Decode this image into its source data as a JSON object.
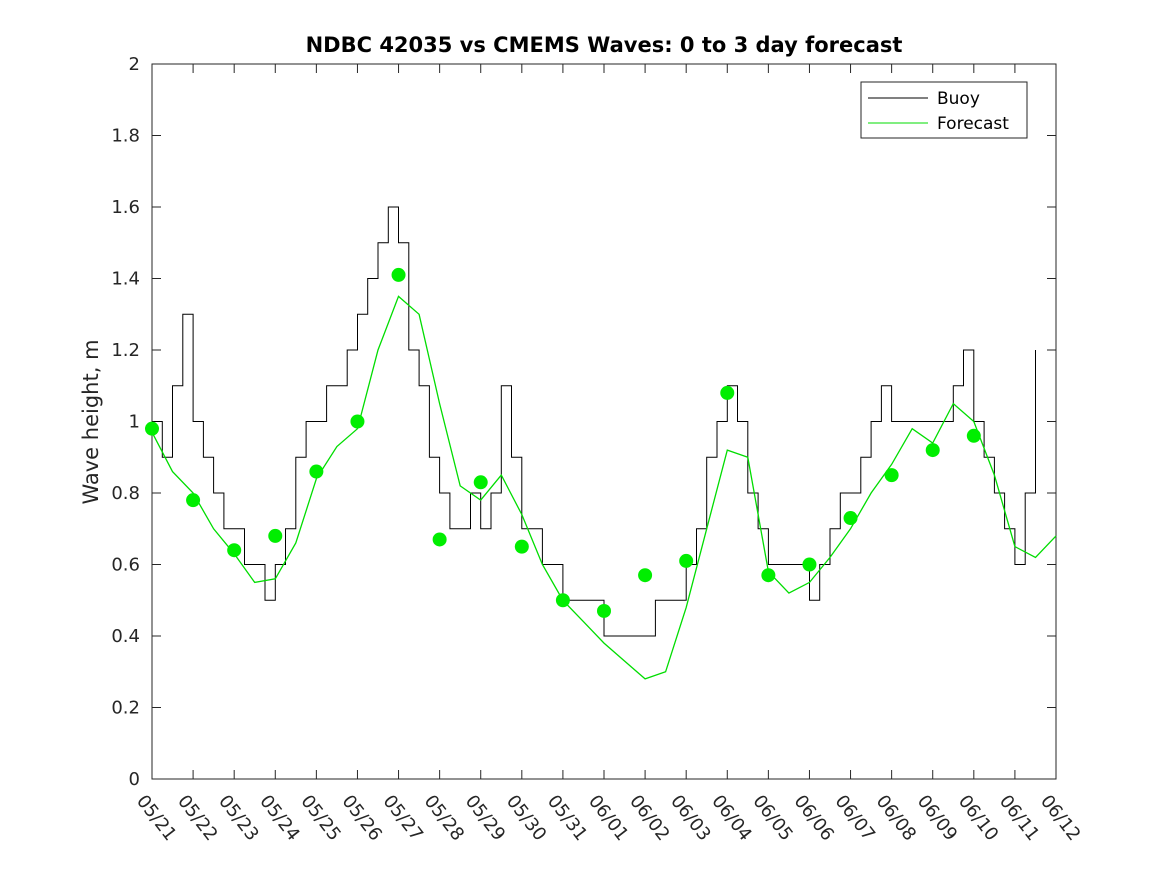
{
  "chart_data": {
    "type": "line",
    "title": "NDBC 42035 vs CMEMS Waves: 0 to 3 day forecast",
    "xlabel": "",
    "ylabel": "Wave height, m",
    "xlim": [
      "05/21",
      "06/12"
    ],
    "ylim": [
      0,
      2
    ],
    "yticks": [
      0,
      0.2,
      0.4,
      0.6,
      0.8,
      1,
      1.2,
      1.4,
      1.6,
      1.8,
      2
    ],
    "ytick_labels": [
      "0",
      "0.2",
      "0.4",
      "0.6",
      "0.8",
      "1",
      "1.2",
      "1.4",
      "1.6",
      "1.8",
      "2"
    ],
    "xtick_labels": [
      "05/21",
      "05/22",
      "05/23",
      "05/24",
      "05/25",
      "05/26",
      "05/27",
      "05/28",
      "05/29",
      "05/30",
      "05/31",
      "06/01",
      "06/02",
      "06/03",
      "06/04",
      "06/05",
      "06/06",
      "06/07",
      "06/08",
      "06/09",
      "06/10",
      "06/11",
      "06/12"
    ],
    "grid": false,
    "legend": {
      "placement": "top-right",
      "entries": [
        {
          "name": "Buoy",
          "color": "#000000"
        },
        {
          "name": "Forecast",
          "color": "#00dd00"
        }
      ]
    },
    "colors": {
      "buoy": "#000000",
      "forecast": "#00dd00",
      "markers": "#00ee00"
    },
    "series": [
      {
        "name": "Buoy",
        "x": [
          "05/21 00:00",
          "05/21 06:00",
          "05/21 12:00",
          "05/21 18:00",
          "05/22 00:00",
          "05/22 06:00",
          "05/22 12:00",
          "05/22 18:00",
          "05/23 00:00",
          "05/23 06:00",
          "05/23 12:00",
          "05/23 18:00",
          "05/24 00:00",
          "05/24 06:00",
          "05/24 12:00",
          "05/24 18:00",
          "05/25 00:00",
          "05/25 06:00",
          "05/25 12:00",
          "05/25 18:00",
          "05/26 00:00",
          "05/26 06:00",
          "05/26 12:00",
          "05/26 18:00",
          "05/27 00:00",
          "05/27 06:00",
          "05/27 12:00",
          "05/27 18:00",
          "05/28 00:00",
          "05/28 06:00",
          "05/28 12:00",
          "05/28 18:00",
          "05/29 00:00",
          "05/29 06:00",
          "05/29 12:00",
          "05/29 18:00",
          "05/30 00:00",
          "05/30 06:00",
          "05/30 12:00",
          "05/30 18:00",
          "05/31 00:00",
          "05/31 06:00",
          "05/31 12:00",
          "05/31 18:00",
          "06/01 00:00",
          "06/01 06:00",
          "06/01 12:00",
          "06/01 18:00",
          "06/02 00:00",
          "06/02 06:00",
          "06/02 12:00",
          "06/02 18:00",
          "06/03 00:00",
          "06/03 06:00",
          "06/03 12:00",
          "06/03 18:00",
          "06/04 00:00",
          "06/04 06:00",
          "06/04 12:00",
          "06/04 18:00",
          "06/05 00:00",
          "06/05 06:00",
          "06/05 12:00",
          "06/05 18:00",
          "06/06 00:00",
          "06/06 06:00",
          "06/06 12:00",
          "06/06 18:00",
          "06/07 00:00",
          "06/07 06:00",
          "06/07 12:00",
          "06/07 18:00",
          "06/08 00:00",
          "06/08 06:00",
          "06/08 12:00",
          "06/08 18:00",
          "06/09 00:00",
          "06/09 06:00",
          "06/09 12:00",
          "06/09 18:00",
          "06/10 00:00",
          "06/10 06:00",
          "06/10 12:00",
          "06/10 18:00",
          "06/11 00:00",
          "06/11 06:00",
          "06/11 12:00"
        ],
        "y": [
          1.0,
          0.9,
          1.1,
          1.3,
          1.0,
          0.9,
          0.8,
          0.7,
          0.7,
          0.6,
          0.6,
          0.5,
          0.6,
          0.7,
          0.9,
          1.0,
          1.0,
          1.1,
          1.1,
          1.2,
          1.3,
          1.4,
          1.5,
          1.6,
          1.5,
          1.2,
          1.1,
          0.9,
          0.8,
          0.7,
          0.7,
          0.8,
          0.7,
          0.8,
          1.1,
          0.9,
          0.7,
          0.7,
          0.6,
          0.6,
          0.5,
          0.5,
          0.5,
          0.5,
          0.4,
          0.4,
          0.4,
          0.4,
          0.4,
          0.5,
          0.5,
          0.5,
          0.6,
          0.7,
          0.9,
          1.0,
          1.1,
          1.0,
          0.8,
          0.7,
          0.6,
          0.6,
          0.6,
          0.6,
          0.5,
          0.6,
          0.7,
          0.8,
          0.8,
          0.9,
          1.0,
          1.1,
          1.0,
          1.0,
          1.0,
          1.0,
          1.0,
          1.0,
          1.1,
          1.2,
          1.0,
          0.9,
          0.8,
          0.7,
          0.6,
          0.8,
          1.2
        ]
      },
      {
        "name": "Forecast",
        "x": [
          "05/21 00:00",
          "05/21 12:00",
          "05/22 00:00",
          "05/22 12:00",
          "05/23 00:00",
          "05/23 12:00",
          "05/24 00:00",
          "05/24 12:00",
          "05/25 00:00",
          "05/25 12:00",
          "05/26 00:00",
          "05/26 12:00",
          "05/27 00:00",
          "05/27 12:00",
          "05/28 00:00",
          "05/28 12:00",
          "05/29 00:00",
          "05/29 12:00",
          "05/30 00:00",
          "05/30 12:00",
          "05/31 00:00",
          "05/31 12:00",
          "06/01 00:00",
          "06/01 12:00",
          "06/02 00:00",
          "06/02 12:00",
          "06/03 00:00",
          "06/03 12:00",
          "06/04 00:00",
          "06/04 12:00",
          "06/05 00:00",
          "06/05 12:00",
          "06/06 00:00",
          "06/06 12:00",
          "06/07 00:00",
          "06/07 12:00",
          "06/08 00:00",
          "06/08 12:00",
          "06/09 00:00",
          "06/09 12:00",
          "06/10 00:00",
          "06/10 12:00",
          "06/11 00:00",
          "06/11 12:00",
          "06/12 00:00"
        ],
        "y": [
          0.97,
          0.86,
          0.8,
          0.7,
          0.63,
          0.55,
          0.56,
          0.66,
          0.84,
          0.93,
          0.98,
          1.2,
          1.35,
          1.3,
          1.05,
          0.82,
          0.78,
          0.85,
          0.74,
          0.6,
          0.5,
          0.44,
          0.38,
          0.33,
          0.28,
          0.3,
          0.48,
          0.7,
          0.92,
          0.9,
          0.58,
          0.52,
          0.55,
          0.62,
          0.7,
          0.8,
          0.88,
          0.98,
          0.94,
          1.05,
          1.0,
          0.85,
          0.65,
          0.62,
          0.68
        ]
      }
    ],
    "markers": {
      "name": "Forecast",
      "x": [
        "05/21",
        "05/22",
        "05/23",
        "05/24",
        "05/25",
        "05/26",
        "05/27",
        "05/28",
        "05/29",
        "05/30",
        "05/31",
        "06/01",
        "06/02",
        "06/03",
        "06/04",
        "06/05",
        "06/06",
        "06/07",
        "06/08",
        "06/09",
        "06/10"
      ],
      "y": [
        0.98,
        0.78,
        0.64,
        0.68,
        0.86,
        1.0,
        1.41,
        0.67,
        0.83,
        0.65,
        0.5,
        0.47,
        0.57,
        0.61,
        1.08,
        0.57,
        0.6,
        0.73,
        0.85,
        0.92,
        0.96
      ]
    }
  }
}
